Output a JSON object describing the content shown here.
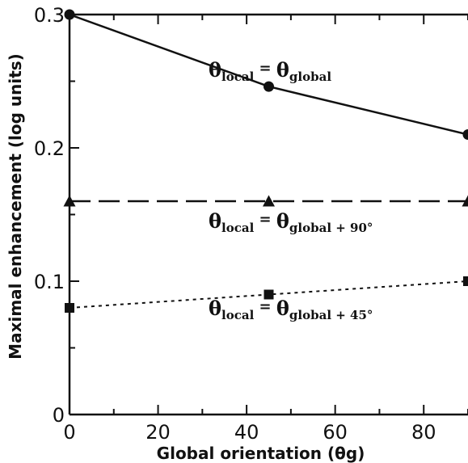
{
  "chart_data": {
    "type": "line",
    "title": "",
    "xlabel": "Global orientation (θg)",
    "ylabel": "Maximal enhancement (log units)",
    "xlim": [
      0,
      90
    ],
    "ylim": [
      0,
      0.3
    ],
    "x_ticks": [
      "0",
      "20",
      "40",
      "60",
      "80"
    ],
    "y_ticks": [
      "0",
      "0.1",
      "0.2",
      "0.3"
    ],
    "grid": false,
    "legend": "none",
    "series": [
      {
        "label_main": "θ",
        "label_sub": "local",
        "label_eq": "=",
        "label_main2": "θ",
        "label_sub2": "global",
        "x": [
          0,
          45,
          90
        ],
        "values": [
          0.3,
          0.246,
          0.21
        ],
        "marker": "circle",
        "line_style": "solid",
        "color": "#111111"
      },
      {
        "label_main": "θ",
        "label_sub": "local",
        "label_eq": "=",
        "label_main2": "θ",
        "label_sub2": "global + 90°",
        "x": [
          0,
          45,
          90
        ],
        "values": [
          0.16,
          0.16,
          0.16
        ],
        "marker": "triangle",
        "line_style": "dashed",
        "color": "#111111"
      },
      {
        "label_main": "θ",
        "label_sub": "local",
        "label_eq": "=",
        "label_main2": "θ",
        "label_sub2": "global + 45°",
        "x": [
          0,
          45,
          90
        ],
        "values": [
          0.08,
          0.09,
          0.1
        ],
        "marker": "square",
        "line_style": "dotted",
        "color": "#111111"
      }
    ]
  }
}
